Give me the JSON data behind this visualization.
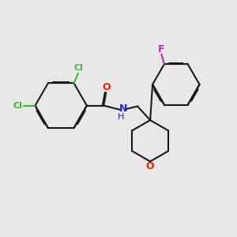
{
  "bg_color": "#e8e8e8",
  "bond_color": "#1a1a1a",
  "cl_color": "#33bb33",
  "o_color": "#ee2200",
  "n_color": "#2222cc",
  "f_color": "#cc22cc",
  "lw": 1.5,
  "dbo": 0.048,
  "xlim": [
    0,
    10
  ],
  "ylim": [
    0,
    10
  ]
}
